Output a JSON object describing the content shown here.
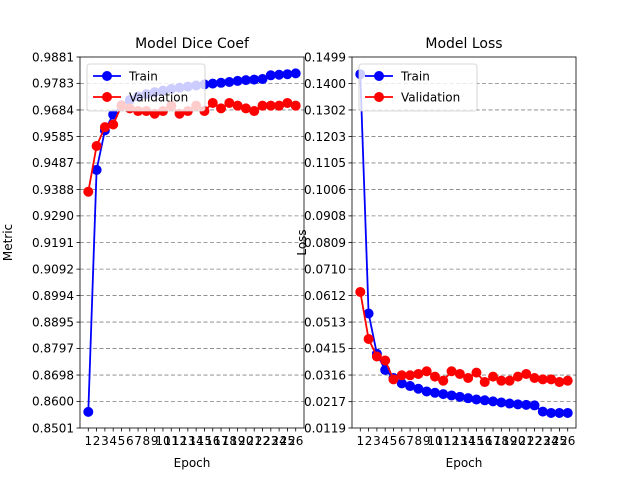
{
  "chart_data": [
    {
      "type": "line",
      "title": "Model Dice Coef",
      "xlabel": "Epoch",
      "ylabel": "Metric",
      "x": [
        1,
        2,
        3,
        4,
        5,
        6,
        7,
        8,
        9,
        10,
        11,
        12,
        13,
        14,
        15,
        16,
        17,
        18,
        19,
        20,
        21,
        22,
        23,
        24,
        25,
        26
      ],
      "x_tick_labels": [
        "1",
        "2",
        "3",
        "4",
        "5",
        "6",
        "7",
        "8",
        "9",
        "10",
        "11",
        "12",
        "13",
        "14",
        "15",
        "16",
        "17",
        "18",
        "19",
        "20",
        "21",
        "22",
        "23",
        "24",
        "25",
        "26"
      ],
      "xlim": [
        0,
        27
      ],
      "ylim": [
        0.8501,
        0.9881
      ],
      "y_ticks": [
        "0.8501",
        "0.8600",
        "0.8698",
        "0.8797",
        "0.8895",
        "0.8994",
        "0.9092",
        "0.9191",
        "0.9290",
        "0.9388",
        "0.9487",
        "0.9585",
        "0.9684",
        "0.9783",
        "0.9881"
      ],
      "grid": "horizontal",
      "legend_position": "top-left",
      "series": [
        {
          "name": "Train",
          "color": "#0000ff",
          "values": [
            0.8561,
            0.9461,
            0.9608,
            0.9667,
            0.9701,
            0.9721,
            0.9734,
            0.9743,
            0.975,
            0.9756,
            0.9762,
            0.9767,
            0.9771,
            0.9775,
            0.9779,
            0.9782,
            0.9785,
            0.9788,
            0.9792,
            0.9795,
            0.9797,
            0.9799,
            0.9813,
            0.9815,
            0.9817,
            0.982
          ]
        },
        {
          "name": "Validation",
          "color": "#ff0000",
          "values": [
            0.938,
            0.955,
            0.962,
            0.963,
            0.97,
            0.969,
            0.968,
            0.968,
            0.967,
            0.968,
            0.97,
            0.967,
            0.968,
            0.97,
            0.968,
            0.971,
            0.969,
            0.971,
            0.97,
            0.969,
            0.968,
            0.97,
            0.97,
            0.97,
            0.971,
            0.97
          ]
        }
      ]
    },
    {
      "type": "line",
      "title": "Model Loss",
      "xlabel": "Epoch",
      "ylabel": "Loss",
      "x": [
        1,
        2,
        3,
        4,
        5,
        6,
        7,
        8,
        9,
        10,
        11,
        12,
        13,
        14,
        15,
        16,
        17,
        18,
        19,
        20,
        21,
        22,
        23,
        24,
        25,
        26
      ],
      "x_tick_labels": [
        "1",
        "2",
        "3",
        "4",
        "5",
        "6",
        "7",
        "8",
        "9",
        "10",
        "11",
        "12",
        "13",
        "14",
        "15",
        "16",
        "17",
        "18",
        "19",
        "20",
        "21",
        "22",
        "23",
        "24",
        "25",
        "26"
      ],
      "xlim": [
        0,
        27
      ],
      "ylim": [
        0.0119,
        0.1499
      ],
      "y_ticks": [
        "0.0119",
        "0.0217",
        "0.0316",
        "0.0415",
        "0.0513",
        "0.0612",
        "0.0710",
        "0.0809",
        "0.0908",
        "0.1006",
        "0.1105",
        "0.1203",
        "0.1302",
        "0.1400",
        "0.1499"
      ],
      "grid": "horizontal",
      "legend_position": "top-left",
      "series": [
        {
          "name": "Train",
          "color": "#0000ff",
          "values": [
            0.1435,
            0.0545,
            0.0395,
            0.0335,
            0.0305,
            0.0285,
            0.0275,
            0.0265,
            0.0255,
            0.025,
            0.0245,
            0.024,
            0.0235,
            0.023,
            0.0225,
            0.0222,
            0.0218,
            0.0214,
            0.021,
            0.0207,
            0.0205,
            0.0203,
            0.018,
            0.0175,
            0.0175,
            0.0175
          ]
        },
        {
          "name": "Validation",
          "color": "#ff0000",
          "values": [
            0.0625,
            0.045,
            0.0385,
            0.037,
            0.03,
            0.0315,
            0.0315,
            0.032,
            0.033,
            0.031,
            0.0295,
            0.033,
            0.032,
            0.0305,
            0.0325,
            0.029,
            0.031,
            0.0295,
            0.0295,
            0.031,
            0.032,
            0.0305,
            0.03,
            0.03,
            0.029,
            0.0295
          ]
        }
      ]
    }
  ]
}
